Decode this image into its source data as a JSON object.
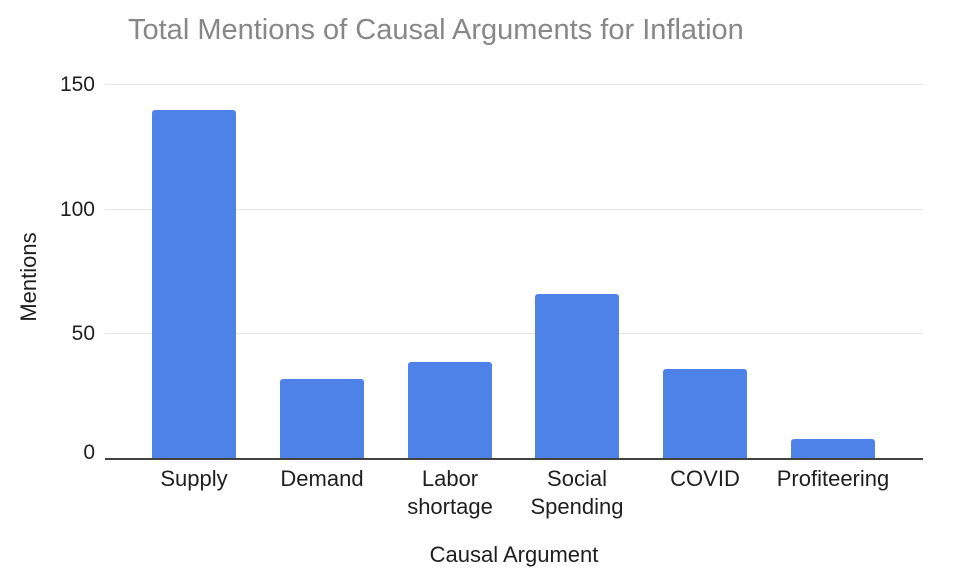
{
  "chart_data": {
    "type": "bar",
    "title": "Total Mentions of Causal Arguments for Inflation",
    "xlabel": "Causal Argument",
    "ylabel": "Mentions",
    "categories": [
      "Supply",
      "Demand",
      "Labor shortage",
      "Social Spending",
      "COVID",
      "Profiteering"
    ],
    "values": [
      140,
      32,
      39,
      66,
      36,
      8
    ],
    "yticks": [
      0,
      50,
      100,
      150
    ],
    "ylim": [
      0,
      150
    ],
    "grid": "horizontal",
    "legend": "none",
    "colors": {
      "bar": "#4E82E9",
      "title_text": "#878787",
      "axis_text": "#1F1F1F",
      "gridline": "#E6E6E6",
      "baseline": "#424242",
      "background": "#FFFFFF"
    }
  }
}
